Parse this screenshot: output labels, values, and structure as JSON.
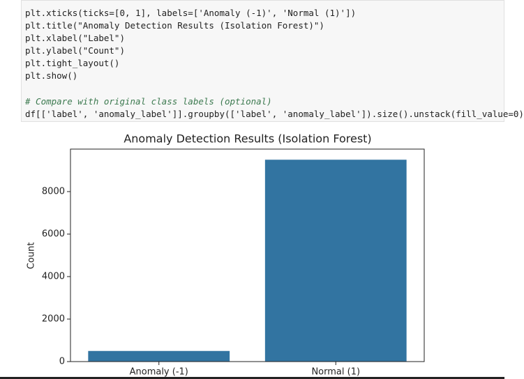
{
  "code": {
    "lines": [
      "plt.xticks(ticks=[0, 1], labels=['Anomaly (-1)', 'Normal (1)'])",
      "plt.title(\"Anomaly Detection Results (Isolation Forest)\")",
      "plt.xlabel(\"Label\")",
      "plt.ylabel(\"Count\")",
      "plt.tight_layout()",
      "plt.show()"
    ],
    "comment": "# Compare with original class labels (optional)",
    "last_line": "df[['label', 'anomaly_label']].groupby(['label', 'anomaly_label']).size().unstack(fill_value=0)"
  },
  "chart_data": {
    "type": "bar",
    "title": "Anomaly Detection Results (Isolation Forest)",
    "y_label": "Count",
    "categories": [
      "Anomaly (-1)",
      "Normal (1)"
    ],
    "values": [
      500,
      9500
    ],
    "color": "#3274a1",
    "ylim": [
      0,
      10000
    ],
    "yticks": [
      0,
      2000,
      4000,
      6000,
      8000
    ]
  }
}
